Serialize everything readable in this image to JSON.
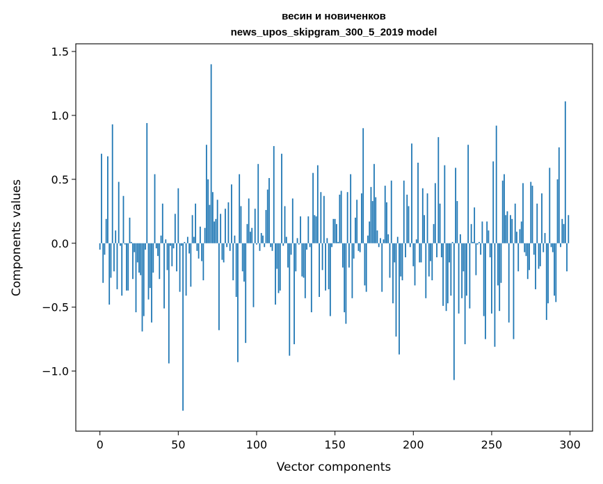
{
  "chart_data": {
    "type": "bar",
    "title_lines": [
      "весин и новиченков",
      "news_upos_skipgram_300_5_2019 model"
    ],
    "xlabel": "Vector components",
    "ylabel": "Components values",
    "xlim": [
      -15.39,
      314.39
    ],
    "ylim": [
      -1.47,
      1.56
    ],
    "xticks": [
      0,
      50,
      100,
      150,
      200,
      250,
      300
    ],
    "xtick_labels": [
      "0",
      "50",
      "100",
      "150",
      "200",
      "250",
      "300"
    ],
    "yticks": [
      -1.0,
      -0.5,
      0.0,
      0.5,
      1.0,
      1.5
    ],
    "ytick_labels": [
      "−1.0",
      "−0.5",
      "0.0",
      "0.5",
      "1.0",
      "1.5"
    ],
    "grid": false,
    "bar_color": "#1f77b4",
    "values": [
      -0.05,
      0.7,
      -0.31,
      -0.09,
      0.19,
      0.68,
      -0.48,
      -0.27,
      0.93,
      -0.22,
      0.1,
      -0.36,
      0.48,
      -0.02,
      -0.41,
      0.37,
      -0.01,
      -0.37,
      -0.37,
      0.2,
      0.01,
      -0.28,
      -0.07,
      -0.54,
      -0.15,
      -0.23,
      -0.25,
      -0.69,
      -0.57,
      -0.05,
      0.94,
      -0.44,
      -0.35,
      -0.62,
      -0.23,
      0.54,
      -0.04,
      -0.1,
      -0.28,
      0.06,
      0.31,
      -0.51,
      0.03,
      -0.21,
      -0.94,
      -0.02,
      -0.18,
      -0.04,
      0.23,
      -0.22,
      0.43,
      -0.38,
      -0.02,
      -1.31,
      0.01,
      -0.41,
      0.05,
      -0.08,
      -0.34,
      0.22,
      0.05,
      0.31,
      -0.06,
      -0.12,
      0.13,
      -0.14,
      -0.29,
      0.12,
      0.77,
      0.5,
      0.3,
      1.4,
      0.4,
      0.17,
      0.19,
      0.34,
      -0.68,
      0.23,
      -0.13,
      -0.15,
      0.27,
      -0.03,
      0.32,
      -0.06,
      0.46,
      -0.29,
      0.06,
      -0.42,
      -0.93,
      0.54,
      0.29,
      -0.22,
      -0.3,
      -0.78,
      0.15,
      0.35,
      0.09,
      0.12,
      -0.5,
      0.27,
      -0.01,
      0.62,
      -0.06,
      0.08,
      0.06,
      -0.03,
      0.26,
      0.42,
      0.51,
      -0.03,
      -0.06,
      0.76,
      -0.48,
      -0.2,
      -0.39,
      -0.37,
      0.7,
      -0.02,
      0.29,
      0.05,
      -0.19,
      -0.88,
      -0.09,
      0.35,
      -0.79,
      -0.22,
      0.04,
      -0.01,
      0.21,
      -0.26,
      -0.27,
      -0.43,
      -0.05,
      0.21,
      -0.03,
      -0.54,
      0.55,
      0.22,
      0.21,
      0.61,
      -0.42,
      0.4,
      -0.21,
      0.37,
      -0.37,
      0.04,
      -0.36,
      -0.57,
      -0.03,
      0.19,
      0.19,
      0.15,
      0.01,
      0.38,
      0.41,
      -0.19,
      -0.54,
      -0.63,
      0.4,
      -0.19,
      0.54,
      -0.43,
      -0.12,
      0.2,
      0.34,
      -0.06,
      -0.07,
      0.39,
      0.9,
      -0.33,
      -0.38,
      0.06,
      0.17,
      0.44,
      0.33,
      0.62,
      0.36,
      0.1,
      -0.03,
      0.04,
      -0.38,
      0.03,
      0.45,
      0.32,
      0.07,
      -0.27,
      0.49,
      -0.47,
      -0.15,
      -0.73,
      0.05,
      -0.87,
      -0.26,
      -0.29,
      0.49,
      -0.11,
      0.38,
      0.29,
      -0.03,
      0.78,
      -0.18,
      -0.33,
      0.03,
      0.63,
      -0.15,
      -0.15,
      0.43,
      0.22,
      -0.43,
      0.39,
      -0.26,
      -0.14,
      -0.29,
      0.15,
      0.47,
      -0.11,
      0.83,
      0.31,
      -0.11,
      -0.49,
      0.61,
      -0.53,
      -0.47,
      -0.15,
      -0.41,
      0.01,
      -1.07,
      0.59,
      0.33,
      -0.55,
      0.07,
      -0.43,
      -0.22,
      -0.79,
      -0.41,
      0.77,
      -0.51,
      0.15,
      0.01,
      0.28,
      -0.25,
      -0.01,
      0.01,
      -0.09,
      0.17,
      -0.57,
      -0.75,
      0.17,
      0.1,
      -0.11,
      -0.55,
      0.64,
      -0.81,
      0.92,
      -0.33,
      -0.53,
      -0.31,
      0.49,
      0.54,
      0.22,
      0.25,
      -0.62,
      0.22,
      0.19,
      -0.75,
      0.31,
      0.09,
      -0.22,
      0.11,
      0.17,
      0.47,
      -0.07,
      -0.1,
      -0.28,
      -0.21,
      0.48,
      0.45,
      -0.09,
      -0.36,
      0.31,
      -0.2,
      -0.18,
      0.39,
      -0.07,
      0.08,
      -0.6,
      -0.47,
      0.59,
      -0.03,
      -0.07,
      -0.41,
      -0.46,
      0.5,
      0.75,
      -0.03,
      0.19,
      0.15,
      1.11,
      -0.22,
      0.22
    ]
  }
}
